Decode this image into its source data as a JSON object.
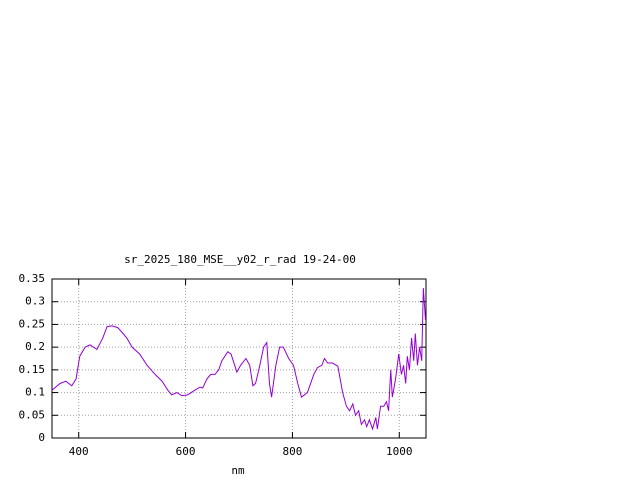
{
  "chart_data": {
    "type": "line",
    "title": "sr_2025_180_MSE__y02_r_rad 19-24-00",
    "x_label": "nm",
    "x": [
      350,
      365,
      376,
      387,
      395,
      402,
      412,
      421,
      434,
      445,
      453,
      462,
      473,
      483,
      490,
      500,
      514,
      528,
      543,
      556,
      567,
      574,
      584,
      593,
      604,
      617,
      627,
      632,
      640,
      647,
      655,
      662,
      668,
      679,
      685,
      692,
      696,
      703,
      713,
      720,
      726,
      731,
      739,
      746,
      752,
      757,
      761,
      769,
      776,
      783,
      793,
      802,
      810,
      817,
      828,
      840,
      847,
      855,
      860,
      866,
      875,
      885,
      894,
      901,
      907,
      913,
      918,
      924,
      929,
      935,
      939,
      944,
      950,
      956,
      959,
      965,
      971,
      976,
      980,
      984,
      987,
      993,
      999,
      1004,
      1008,
      1012,
      1015,
      1019,
      1023,
      1027,
      1030,
      1034,
      1038,
      1042,
      1045,
      1049
    ],
    "series": [
      {
        "name": "sr_2025_180_MSE__y02_r_rad",
        "color": "#9400d3",
        "values": [
          0.105,
          0.12,
          0.125,
          0.115,
          0.13,
          0.18,
          0.2,
          0.205,
          0.195,
          0.22,
          0.245,
          0.247,
          0.243,
          0.23,
          0.22,
          0.2,
          0.185,
          0.16,
          0.14,
          0.125,
          0.105,
          0.095,
          0.1,
          0.093,
          0.095,
          0.105,
          0.112,
          0.11,
          0.13,
          0.14,
          0.14,
          0.15,
          0.17,
          0.19,
          0.185,
          0.16,
          0.145,
          0.16,
          0.175,
          0.16,
          0.115,
          0.12,
          0.16,
          0.2,
          0.21,
          0.12,
          0.09,
          0.16,
          0.2,
          0.2,
          0.175,
          0.16,
          0.12,
          0.09,
          0.1,
          0.14,
          0.155,
          0.16,
          0.175,
          0.165,
          0.165,
          0.158,
          0.1,
          0.07,
          0.06,
          0.075,
          0.05,
          0.06,
          0.03,
          0.04,
          0.025,
          0.04,
          0.02,
          0.045,
          0.02,
          0.07,
          0.07,
          0.08,
          0.06,
          0.15,
          0.09,
          0.13,
          0.185,
          0.14,
          0.16,
          0.12,
          0.18,
          0.15,
          0.22,
          0.17,
          0.23,
          0.16,
          0.2,
          0.17,
          0.33,
          0.26
        ]
      }
    ],
    "xlim": [
      350,
      1050
    ],
    "xticks": [
      400,
      600,
      800,
      1000
    ],
    "ylim": [
      0,
      0.35
    ],
    "yticks": [
      0,
      0.05,
      0.1,
      0.15,
      0.2,
      0.25,
      0.3,
      0.35
    ],
    "grid": true
  }
}
